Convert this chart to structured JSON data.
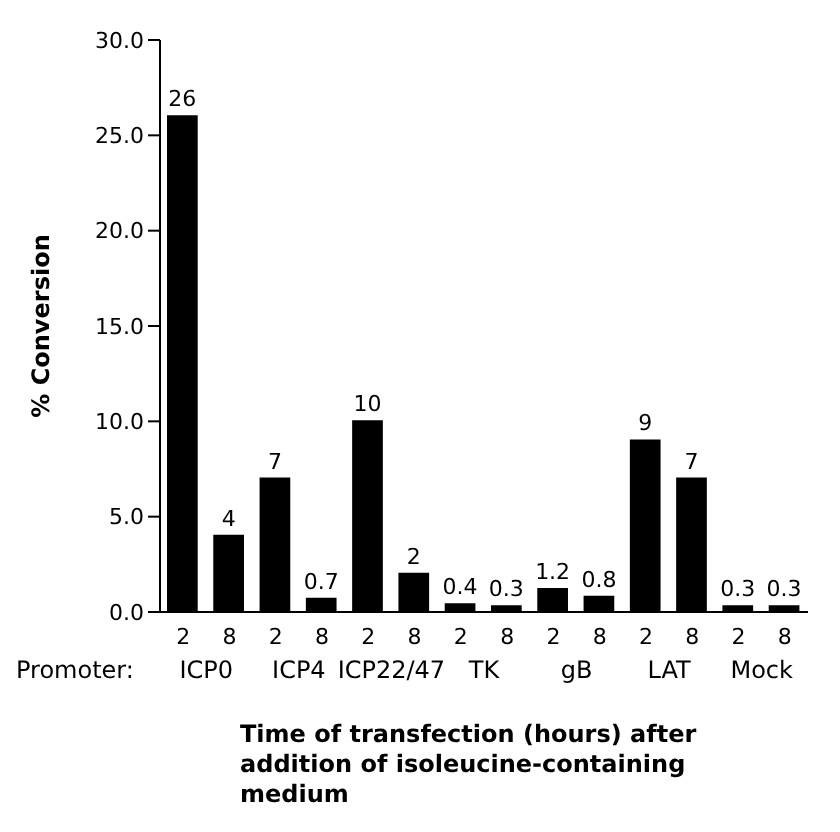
{
  "chart_data": {
    "type": "bar",
    "ylabel": "% Conversion",
    "xlabel": "Time of transfection (hours) after addition of isoleucine-containing medium",
    "categories": [
      "2",
      "8",
      "2",
      "8",
      "2",
      "8",
      "2",
      "8",
      "2",
      "8",
      "2",
      "8",
      "2",
      "8"
    ],
    "values": [
      26,
      4,
      7,
      0.7,
      10,
      2,
      0.4,
      0.3,
      1.2,
      0.8,
      9,
      7,
      0.3,
      0.3
    ],
    "color": "#000000",
    "data_labels": true,
    "ylim": [
      0,
      30
    ],
    "yticks": [
      {
        "value": 0,
        "label": "0.0"
      },
      {
        "value": 5,
        "label": "5.0"
      },
      {
        "value": 10,
        "label": "10.0"
      },
      {
        "value": 15,
        "label": "15.0"
      },
      {
        "value": 20,
        "label": "20.0"
      },
      {
        "value": 25,
        "label": "25.0"
      },
      {
        "value": 30,
        "label": "30.0"
      }
    ],
    "annotations": [
      "Promoter:",
      "ICP0",
      "ICP4",
      "ICP22/47",
      "TK",
      "gB",
      "LAT",
      "Mock"
    ],
    "grid": false
  }
}
